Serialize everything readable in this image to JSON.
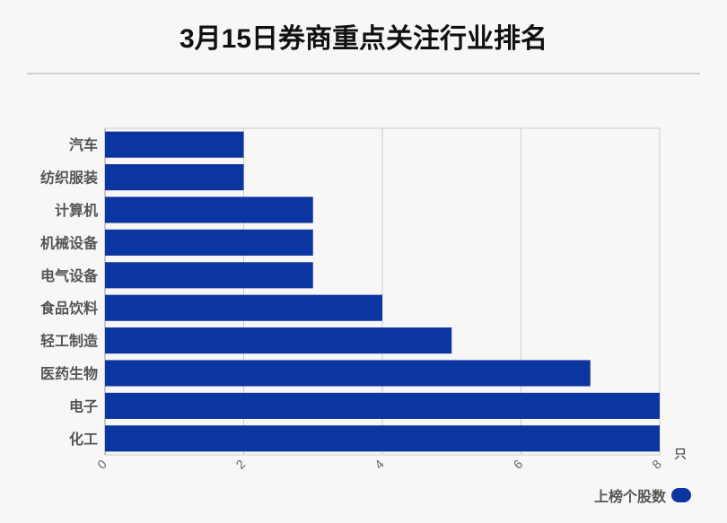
{
  "title": "3月15日券商重点关注行业排名",
  "chart_data": {
    "type": "bar",
    "orientation": "horizontal",
    "categories": [
      "汽车",
      "纺织服装",
      "计算机",
      "机械设备",
      "电气设备",
      "食品饮料",
      "轻工制造",
      "医药生物",
      "电子",
      "化工"
    ],
    "series": [
      {
        "name": "上榜个股数",
        "values": [
          2,
          2,
          3,
          3,
          3,
          4,
          5,
          7,
          8,
          8
        ]
      }
    ],
    "xlim": [
      0,
      8
    ],
    "xticks": [
      "0",
      "2",
      "4",
      "6",
      "8"
    ],
    "xunit": "只",
    "grid": true,
    "legend_position": "bottom-right",
    "bar_color": "#0b35a0"
  }
}
